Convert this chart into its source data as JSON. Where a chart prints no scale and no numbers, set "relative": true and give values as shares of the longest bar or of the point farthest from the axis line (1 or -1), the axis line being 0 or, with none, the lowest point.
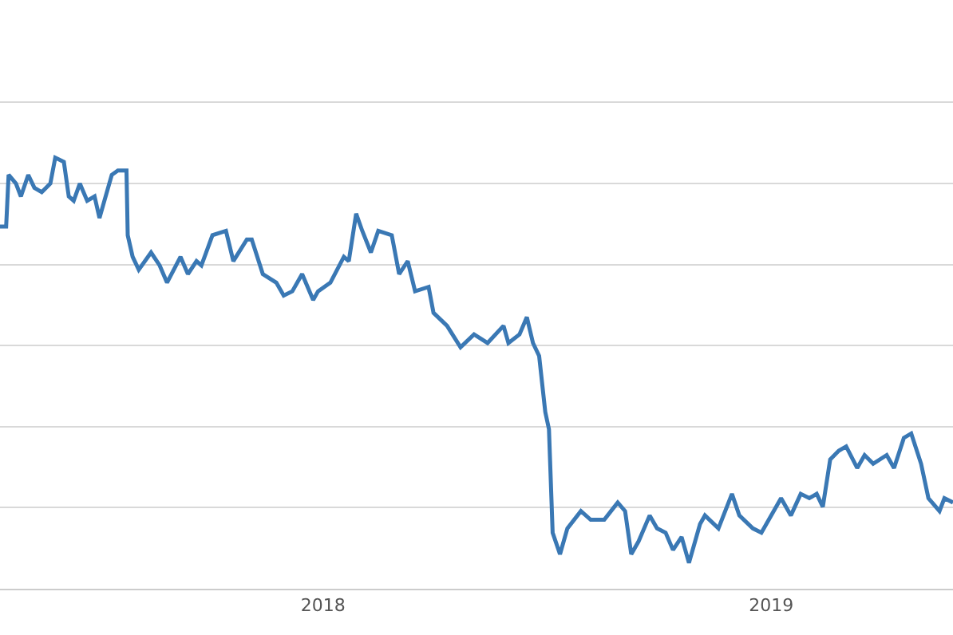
{
  "chart_data": {
    "type": "line",
    "relative": true,
    "grid": "y",
    "marker": "none",
    "line_style": "solid",
    "xlim": [
      "2017-04-13",
      "2019-05-29"
    ],
    "xticks": [
      "2018",
      "2019"
    ],
    "x": [
      "2017-04-13",
      "2017-04-18",
      "2017-04-20",
      "2017-04-26",
      "2017-04-30",
      "2017-05-06",
      "2017-05-11",
      "2017-05-17",
      "2017-05-24",
      "2017-05-28",
      "2017-06-04",
      "2017-06-08",
      "2017-06-12",
      "2017-06-17",
      "2017-06-23",
      "2017-06-29",
      "2017-07-03",
      "2017-07-13",
      "2017-07-18",
      "2017-07-25",
      "2017-07-26",
      "2017-07-30",
      "2017-08-04",
      "2017-08-14",
      "2017-08-21",
      "2017-08-27",
      "2017-09-07",
      "2017-09-13",
      "2017-09-20",
      "2017-09-24",
      "2017-10-03",
      "2017-10-14",
      "2017-10-20",
      "2017-10-31",
      "2017-11-04",
      "2017-11-13",
      "2017-11-24",
      "2017-11-30",
      "2017-12-07",
      "2017-12-15",
      "2017-12-24",
      "2017-12-28",
      "2018-01-07",
      "2018-01-18",
      "2018-01-22",
      "2018-01-28",
      "2018-02-02",
      "2018-02-09",
      "2018-02-15",
      "2018-02-26",
      "2018-03-04",
      "2018-03-11",
      "2018-03-17",
      "2018-03-28",
      "2018-04-01",
      "2018-04-12",
      "2018-04-23",
      "2018-05-04",
      "2018-05-15",
      "2018-05-28",
      "2018-06-01",
      "2018-06-10",
      "2018-06-16",
      "2018-06-21",
      "2018-06-26",
      "2018-07-01",
      "2018-07-04",
      "2018-07-07",
      "2018-07-13",
      "2018-07-19",
      "2018-07-30",
      "2018-08-07",
      "2018-08-18",
      "2018-08-29",
      "2018-09-04",
      "2018-09-09",
      "2018-09-15",
      "2018-09-24",
      "2018-09-30",
      "2018-10-07",
      "2018-10-13",
      "2018-10-20",
      "2018-10-26",
      "2018-11-04",
      "2018-11-08",
      "2018-11-19",
      "2018-11-30",
      "2018-12-06",
      "2018-12-17",
      "2018-12-24",
      "2018-12-30",
      "2019-01-09",
      "2019-01-17",
      "2019-01-25",
      "2019-02-01",
      "2019-02-07",
      "2019-02-12",
      "2019-02-18",
      "2019-02-25",
      "2019-03-03",
      "2019-03-12",
      "2019-03-18",
      "2019-03-25",
      "2019-04-05",
      "2019-04-11",
      "2019-04-19",
      "2019-04-25",
      "2019-05-03",
      "2019-05-09",
      "2019-05-18",
      "2019-05-22",
      "2019-05-29"
    ],
    "series": [
      {
        "color": "#3a78b4",
        "values": [
          0.84,
          0.84,
          0.96,
          0.94,
          0.91,
          0.96,
          0.93,
          0.92,
          0.94,
          1.0,
          0.99,
          0.91,
          0.9,
          0.94,
          0.9,
          0.91,
          0.86,
          0.96,
          0.97,
          0.97,
          0.82,
          0.77,
          0.74,
          0.78,
          0.75,
          0.71,
          0.77,
          0.73,
          0.76,
          0.75,
          0.82,
          0.83,
          0.76,
          0.81,
          0.81,
          0.73,
          0.71,
          0.68,
          0.69,
          0.73,
          0.67,
          0.69,
          0.71,
          0.77,
          0.76,
          0.87,
          0.83,
          0.78,
          0.83,
          0.82,
          0.73,
          0.76,
          0.69,
          0.7,
          0.64,
          0.61,
          0.56,
          0.59,
          0.57,
          0.61,
          0.57,
          0.59,
          0.63,
          0.57,
          0.54,
          0.41,
          0.37,
          0.13,
          0.08,
          0.14,
          0.18,
          0.16,
          0.16,
          0.2,
          0.18,
          0.08,
          0.11,
          0.17,
          0.14,
          0.13,
          0.09,
          0.12,
          0.06,
          0.15,
          0.17,
          0.14,
          0.22,
          0.17,
          0.14,
          0.13,
          0.16,
          0.21,
          0.17,
          0.22,
          0.21,
          0.22,
          0.19,
          0.3,
          0.32,
          0.33,
          0.28,
          0.31,
          0.29,
          0.31,
          0.28,
          0.35,
          0.36,
          0.29,
          0.21,
          0.18,
          0.21,
          0.2
        ]
      }
    ]
  }
}
